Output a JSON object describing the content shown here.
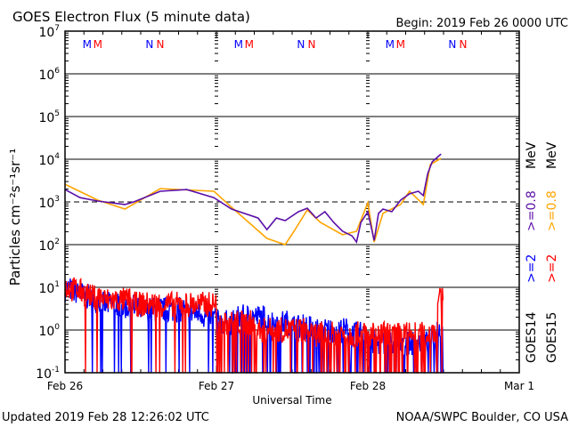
{
  "chart_data": {
    "type": "line",
    "title": "GOES Electron Flux (5 minute data)",
    "subtitle": "Begin: 2019 Feb 26 0000 UTC",
    "xlabel": "Universal Time",
    "ylabel": "Particles cm⁻²s⁻¹sr⁻¹",
    "footer_left": "Updated 2019 Feb 28 12:26:02 UTC",
    "footer_right": "NOAA/SWPC Boulder, CO USA",
    "x_range": [
      "2019-02-26 00:00",
      "2019-03-01 00:00"
    ],
    "x_tick_labels": [
      "Feb 26",
      "Feb 27",
      "Feb 28",
      "Mar 1"
    ],
    "y_scale": "log",
    "ylim": [
      0.1,
      10000000
    ],
    "y_tick_labels": [
      {
        "base": "10",
        "exp": "7"
      },
      {
        "base": "10",
        "exp": "6"
      },
      {
        "base": "10",
        "exp": "5"
      },
      {
        "base": "10",
        "exp": "4"
      },
      {
        "base": "10",
        "exp": "3"
      },
      {
        "base": "10",
        "exp": "2"
      },
      {
        "base": "10",
        "exp": "1"
      },
      {
        "base": "10",
        "exp": "0"
      },
      {
        "base": "10",
        "exp": "-1"
      }
    ],
    "grid": "horizontal at each decade",
    "threshold": {
      "value": 1000,
      "style": "dashed"
    },
    "legend": {
      "placement": "right",
      "columns": [
        {
          "satellite": "GOES14",
          "entries": [
            {
              "text": ">=2",
              "color": "#0000ff"
            },
            {
              "text": ">=0.8",
              "color": "#5b0fa8"
            }
          ],
          "unit": "MeV"
        },
        {
          "satellite": "GOES15",
          "entries": [
            {
              "text": ">=2",
              "color": "#ff0000"
            },
            {
              "text": ">=0.8",
              "color": "#ffa500"
            }
          ],
          "unit": "MeV"
        }
      ]
    },
    "markers": [
      {
        "label": "M",
        "color": "#0000ff",
        "time_of_day": "03:30"
      },
      {
        "label": "M",
        "color": "#ff0000",
        "time_of_day": "05:12"
      },
      {
        "label": "N",
        "color": "#0000ff",
        "time_of_day": "13:24"
      },
      {
        "label": "N",
        "color": "#ff0000",
        "time_of_day": "15:06"
      }
    ],
    "series": [
      {
        "name": "GOES14 >=0.8 MeV",
        "color": "#5b0fa8",
        "points": [
          [
            "2019-02-26 00:00",
            1950
          ],
          [
            "2019-02-26 02:24",
            1260
          ],
          [
            "2019-02-26 05:12",
            1050
          ],
          [
            "2019-02-26 09:30",
            870
          ],
          [
            "2019-02-26 10:54",
            1000
          ],
          [
            "2019-02-26 15:06",
            1780
          ],
          [
            "2019-02-26 19:18",
            1950
          ],
          [
            "2019-02-26 23:36",
            1260
          ],
          [
            "2019-02-27 02:24",
            680
          ],
          [
            "2019-02-27 06:36",
            420
          ],
          [
            "2019-02-27 08:00",
            225
          ],
          [
            "2019-02-27 09:30",
            420
          ],
          [
            "2019-02-27 10:54",
            365
          ],
          [
            "2019-02-27 13:00",
            590
          ],
          [
            "2019-02-27 14:24",
            710
          ],
          [
            "2019-02-27 15:48",
            420
          ],
          [
            "2019-02-27 17:12",
            590
          ],
          [
            "2019-02-27 18:36",
            330
          ],
          [
            "2019-02-27 20:00",
            205
          ],
          [
            "2019-02-27 21:30",
            160
          ],
          [
            "2019-02-27 22:12",
            115
          ],
          [
            "2019-02-27 22:54",
            330
          ],
          [
            "2019-02-28 00:00",
            590
          ],
          [
            "2019-02-28 01:00",
            125
          ],
          [
            "2019-02-28 01:42",
            540
          ],
          [
            "2019-02-28 02:24",
            680
          ],
          [
            "2019-02-28 03:48",
            590
          ],
          [
            "2019-02-28 05:12",
            1100
          ],
          [
            "2019-02-28 06:36",
            1550
          ],
          [
            "2019-02-28 08:00",
            1780
          ],
          [
            "2019-02-28 08:48",
            1410
          ],
          [
            "2019-02-28 09:30",
            4640
          ],
          [
            "2019-02-28 10:12",
            8700
          ],
          [
            "2019-02-28 11:36",
            13300
          ]
        ]
      },
      {
        "name": "GOES15 >=0.8 MeV",
        "color": "#ffa500",
        "points": [
          [
            "2019-02-26 00:00",
            2600
          ],
          [
            "2019-02-26 05:12",
            1100
          ],
          [
            "2019-02-26 09:30",
            680
          ],
          [
            "2019-02-26 15:06",
            2050
          ],
          [
            "2019-02-26 23:36",
            1780
          ],
          [
            "2019-02-27 02:24",
            750
          ],
          [
            "2019-02-27 08:00",
            140
          ],
          [
            "2019-02-27 10:54",
            100
          ],
          [
            "2019-02-27 12:18",
            205
          ],
          [
            "2019-02-27 14:24",
            650
          ],
          [
            "2019-02-27 16:30",
            330
          ],
          [
            "2019-02-27 20:00",
            170
          ],
          [
            "2019-02-27 22:12",
            205
          ],
          [
            "2019-02-28 00:00",
            960
          ],
          [
            "2019-02-28 01:00",
            115
          ],
          [
            "2019-02-28 02:24",
            540
          ],
          [
            "2019-02-28 05:12",
            870
          ],
          [
            "2019-02-28 06:36",
            1780
          ],
          [
            "2019-02-28 08:48",
            870
          ],
          [
            "2019-02-28 09:54",
            7500
          ],
          [
            "2019-02-28 11:36",
            10500
          ]
        ]
      },
      {
        "name": "GOES14 >=2 MeV",
        "color": "#0000ff",
        "hourly_start": "2019-02-26 00:00",
        "hourly_values": [
          9,
          8,
          7,
          6,
          5,
          5,
          4,
          4,
          4,
          3.5,
          3.5,
          3,
          3,
          3,
          3,
          3,
          3,
          3,
          3,
          2.5,
          2.5,
          2.5,
          2,
          2,
          1.5,
          1.5,
          1.5,
          2,
          2,
          2,
          2,
          2,
          1.5,
          1.5,
          1.5,
          1.5,
          1.2,
          1.2,
          1.2,
          1,
          1,
          1,
          1,
          1,
          1,
          0.8,
          0.8,
          0.8,
          0.5,
          0.5,
          0.5,
          0.5,
          0.5,
          0.5,
          0.5,
          0.5,
          0.5,
          0.5,
          0.6,
          1
        ]
      },
      {
        "name": "GOES15 >=2 MeV",
        "color": "#ff0000",
        "hourly_start": "2019-02-26 00:00",
        "hourly_values": [
          10,
          9,
          8,
          7,
          6,
          6,
          5,
          5,
          5,
          5,
          5,
          4,
          4,
          4,
          4,
          4,
          4,
          4,
          4,
          4,
          4,
          4,
          4,
          4,
          1.5,
          1.5,
          1.5,
          1.5,
          1.5,
          1.5,
          1,
          1,
          1,
          1,
          1,
          1,
          1,
          1,
          1,
          0.8,
          0.8,
          0.8,
          0.8,
          0.8,
          0.8,
          0.8,
          0.8,
          0.8,
          0.8,
          0.8,
          0.8,
          0.8,
          0.8,
          0.8,
          0.8,
          0.8,
          0.8,
          0.8,
          1,
          5
        ]
      }
    ]
  }
}
